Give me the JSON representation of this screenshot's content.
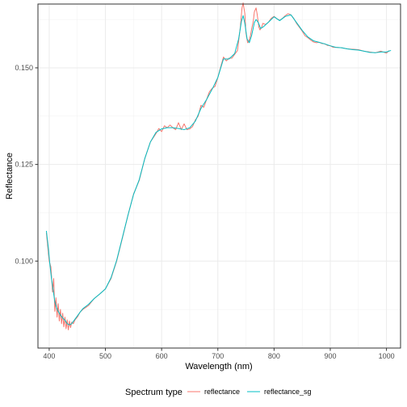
{
  "chart_data": {
    "type": "line",
    "xlabel": "Wavelength (nm)",
    "ylabel": "Reflectance",
    "xlim": [
      380,
      1025
    ],
    "ylim": [
      0.0775,
      0.1665
    ],
    "x_ticks": [
      400,
      500,
      600,
      700,
      800,
      900,
      1000
    ],
    "x_tick_labels": [
      "400",
      "500",
      "600",
      "700",
      "800",
      "900",
      "1000"
    ],
    "y_ticks": [
      0.1,
      0.125,
      0.15
    ],
    "y_tick_labels": [
      "0.100",
      "0.125",
      "0.150"
    ],
    "grid": true,
    "legend": {
      "position": "bottom",
      "title": "Spectrum type",
      "entries": [
        "reflectance",
        "reflectance_sg"
      ]
    },
    "series": [
      {
        "name": "reflectance",
        "color": "#f8766d",
        "x": [
          395,
          400,
          403,
          406,
          408,
          410,
          412,
          414,
          416,
          418,
          420,
          422,
          424,
          426,
          428,
          430,
          432,
          434,
          436,
          438,
          440,
          443,
          446,
          450,
          455,
          460,
          470,
          480,
          490,
          500,
          510,
          520,
          530,
          540,
          550,
          560,
          570,
          580,
          590,
          595,
          600,
          605,
          610,
          615,
          620,
          625,
          630,
          635,
          640,
          645,
          650,
          655,
          660,
          665,
          670,
          675,
          680,
          685,
          690,
          695,
          700,
          705,
          710,
          715,
          720,
          725,
          730,
          735,
          740,
          743,
          745,
          748,
          750,
          753,
          755,
          758,
          760,
          763,
          765,
          768,
          770,
          773,
          775,
          778,
          780,
          785,
          790,
          795,
          800,
          805,
          810,
          815,
          820,
          825,
          830,
          835,
          840,
          845,
          850,
          855,
          860,
          865,
          870,
          875,
          880,
          885,
          890,
          895,
          900,
          905,
          910,
          920,
          930,
          940,
          950,
          960,
          970,
          980,
          990,
          1000,
          1005
        ],
        "y": [
          0.1073,
          0.1,
          0.0985,
          0.092,
          0.0955,
          0.087,
          0.0905,
          0.0855,
          0.089,
          0.0845,
          0.0875,
          0.0838,
          0.0865,
          0.083,
          0.0855,
          0.0825,
          0.0848,
          0.0822,
          0.0845,
          0.0828,
          0.0842,
          0.0838,
          0.0848,
          0.0855,
          0.0868,
          0.0875,
          0.0885,
          0.0903,
          0.0915,
          0.0928,
          0.0955,
          0.1,
          0.1058,
          0.1118,
          0.1173,
          0.1208,
          0.1265,
          0.1308,
          0.133,
          0.1343,
          0.1335,
          0.135,
          0.1345,
          0.1352,
          0.1345,
          0.134,
          0.1358,
          0.134,
          0.1355,
          0.134,
          0.1342,
          0.1348,
          0.1365,
          0.1375,
          0.1403,
          0.1398,
          0.1418,
          0.1438,
          0.1447,
          0.1452,
          0.1475,
          0.1502,
          0.1528,
          0.1518,
          0.1525,
          0.1525,
          0.1535,
          0.1545,
          0.1605,
          0.1655,
          0.1668,
          0.164,
          0.159,
          0.1565,
          0.1568,
          0.1583,
          0.16,
          0.162,
          0.1645,
          0.1655,
          0.1638,
          0.1605,
          0.1598,
          0.1605,
          0.1615,
          0.1612,
          0.1618,
          0.1628,
          0.1633,
          0.1627,
          0.1623,
          0.1628,
          0.1635,
          0.164,
          0.1637,
          0.1628,
          0.1615,
          0.1605,
          0.1595,
          0.1583,
          0.1578,
          0.1572,
          0.1567,
          0.1565,
          0.1566,
          0.1563,
          0.1562,
          0.1558,
          0.1557,
          0.1553,
          0.1553,
          0.1552,
          0.1549,
          0.1548,
          0.1547,
          0.1543,
          0.1541,
          0.1539,
          0.1543,
          0.1538,
          0.1545
        ]
      },
      {
        "name": "reflectance_sg",
        "color": "#00bfc4",
        "x": [
          395,
          398,
          401,
          404,
          407,
          410,
          413,
          416,
          420,
          424,
          428,
          432,
          436,
          440,
          445,
          450,
          455,
          460,
          470,
          480,
          490,
          500,
          510,
          520,
          530,
          540,
          550,
          560,
          570,
          580,
          590,
          600,
          610,
          620,
          630,
          640,
          650,
          660,
          670,
          680,
          690,
          700,
          710,
          720,
          730,
          737,
          742,
          745,
          748,
          752,
          756,
          760,
          765,
          768,
          772,
          776,
          780,
          790,
          800,
          810,
          820,
          830,
          840,
          850,
          860,
          870,
          880,
          890,
          900,
          910,
          920,
          930,
          940,
          950,
          960,
          970,
          980,
          990,
          1000,
          1008
        ],
        "y": [
          0.1078,
          0.104,
          0.0995,
          0.0955,
          0.0925,
          0.0895,
          0.088,
          0.087,
          0.086,
          0.0853,
          0.0847,
          0.0838,
          0.0835,
          0.0838,
          0.0848,
          0.0858,
          0.0868,
          0.0877,
          0.0888,
          0.0903,
          0.0915,
          0.0928,
          0.0957,
          0.1002,
          0.106,
          0.1118,
          0.1172,
          0.121,
          0.1265,
          0.1308,
          0.1333,
          0.1342,
          0.1345,
          0.1345,
          0.1343,
          0.134,
          0.1345,
          0.1362,
          0.1395,
          0.1418,
          0.1445,
          0.1475,
          0.1523,
          0.1523,
          0.1537,
          0.1575,
          0.162,
          0.1635,
          0.1615,
          0.1575,
          0.1565,
          0.1583,
          0.1617,
          0.1625,
          0.1617,
          0.1602,
          0.1605,
          0.1618,
          0.1632,
          0.1622,
          0.1633,
          0.1637,
          0.1617,
          0.1597,
          0.158,
          0.157,
          0.1566,
          0.1562,
          0.1557,
          0.1553,
          0.1552,
          0.1549,
          0.1547,
          0.1546,
          0.1543,
          0.154,
          0.1539,
          0.1541,
          0.1541,
          0.1545
        ]
      }
    ]
  }
}
